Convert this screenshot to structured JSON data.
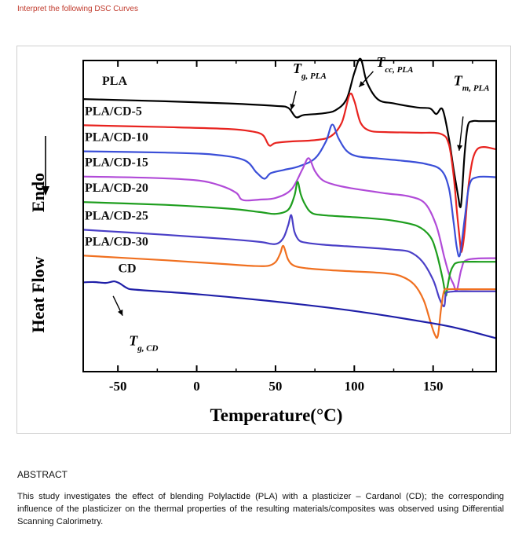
{
  "page": {
    "prompt": "Interpret the following DSC Curves",
    "abstract_heading": "ABSTRACT",
    "abstract_body": "This study investigates the effect of blending Polylactide (PLA) with a plasticizer – Cardanol (CD); the corresponding influence of the plasticizer on the thermal properties of the resulting materials/composites was observed using Differential Scanning Calorimetry."
  },
  "chart_data": {
    "type": "line",
    "title": "",
    "xlabel": "Temperature(°C)",
    "ylabel": "Heat Flow",
    "endo_label": "Endo",
    "xlim": [
      -72,
      190
    ],
    "ylim": [
      0,
      100
    ],
    "xticks": [
      -50,
      0,
      50,
      100,
      150
    ],
    "xtick_labels": [
      "-50",
      "0",
      "50",
      "100",
      "150"
    ],
    "grid": false,
    "series": [
      {
        "name": "PLA",
        "color": "#000000",
        "x": [
          -72,
          -20,
          20,
          50,
          58,
          63,
          68,
          80,
          88,
          95,
          100,
          104,
          108,
          115,
          125,
          140,
          148,
          152,
          156,
          160,
          163,
          166,
          167,
          168,
          170,
          172,
          175,
          180,
          190
        ],
        "y": [
          87.6,
          86.9,
          86.2,
          85.4,
          84.8,
          81.8,
          82.5,
          83.0,
          84.0,
          87.5,
          96.0,
          100.5,
          93.0,
          87.5,
          86.2,
          84.9,
          84.6,
          82.8,
          84.3,
          75.0,
          65.0,
          56.0,
          53.0,
          55.0,
          70.0,
          79.0,
          80.5,
          80.5,
          80.5
        ]
      },
      {
        "name": "PLA/CD-5",
        "color": "#e8231f",
        "x": [
          -72,
          -20,
          20,
          35,
          42,
          46,
          50,
          60,
          75,
          85,
          92,
          97,
          100,
          104,
          110,
          120,
          140,
          155,
          160,
          163,
          165,
          167,
          168,
          170,
          173,
          178,
          190
        ],
        "y": [
          79.2,
          78.6,
          78.0,
          77.2,
          76.0,
          72.7,
          73.5,
          74.0,
          74.4,
          75.6,
          80.0,
          89.0,
          87.0,
          80.0,
          77.4,
          77.0,
          76.8,
          76.4,
          73.0,
          63.0,
          52.0,
          42.0,
          38.5,
          45.0,
          62.0,
          71.5,
          71.5
        ]
      },
      {
        "name": "PLA/CD-10",
        "color": "#3b4fd8",
        "x": [
          -72,
          -20,
          10,
          30,
          38,
          43,
          47,
          55,
          65,
          75,
          82,
          86,
          90,
          95,
          102,
          115,
          130,
          145,
          155,
          160,
          163,
          165,
          167,
          170,
          173,
          178,
          190
        ],
        "y": [
          70.8,
          70.4,
          69.8,
          68.0,
          64.0,
          62.0,
          63.8,
          64.8,
          66.0,
          68.5,
          74.0,
          79.4,
          75.0,
          71.0,
          69.2,
          68.5,
          67.8,
          66.8,
          64.8,
          59.0,
          48.0,
          40.0,
          37.5,
          49.0,
          60.0,
          62.5,
          62.5
        ]
      },
      {
        "name": "PLA/CD-15",
        "color": "#b14bd8",
        "x": [
          -72,
          -30,
          0,
          15,
          25,
          28,
          32,
          40,
          50,
          60,
          67,
          71,
          75,
          80,
          88,
          100,
          120,
          135,
          145,
          152,
          157,
          160,
          163,
          165,
          168,
          172,
          190
        ],
        "y": [
          62.7,
          62.3,
          61.5,
          59.8,
          57.5,
          55.5,
          55.0,
          55.3,
          55.8,
          58.5,
          65.0,
          68.6,
          64.5,
          61.5,
          60.0,
          58.8,
          57.3,
          56.3,
          54.0,
          47.0,
          37.0,
          31.5,
          28.0,
          26.0,
          33.0,
          36.0,
          36.5
        ]
      },
      {
        "name": "PLA/CD-20",
        "color": "#1e9e1e",
        "x": [
          -72,
          -20,
          20,
          40,
          50,
          58,
          62,
          64,
          66,
          69,
          73,
          80,
          95,
          110,
          125,
          140,
          148,
          152,
          156,
          158,
          159,
          161,
          163,
          165,
          170,
          180,
          190
        ],
        "y": [
          54.5,
          53.6,
          52.4,
          51.3,
          50.7,
          52.0,
          56.5,
          61.0,
          57.0,
          53.5,
          51.0,
          50.3,
          49.8,
          49.3,
          48.5,
          46.8,
          43.5,
          38.5,
          30.0,
          24.5,
          27.0,
          32.0,
          34.2,
          35.0,
          35.3,
          35.3,
          35.3
        ]
      },
      {
        "name": "PLA/CD-25",
        "color": "#4a3fc7",
        "x": [
          -72,
          -20,
          20,
          40,
          50,
          55,
          58,
          60,
          62,
          65,
          70,
          80,
          95,
          110,
          125,
          135,
          143,
          150,
          154,
          157,
          158,
          160,
          165,
          175,
          190
        ],
        "y": [
          45.6,
          44.0,
          42.6,
          41.7,
          41.0,
          43.0,
          47.0,
          50.3,
          45.0,
          42.2,
          41.4,
          40.8,
          40.3,
          39.8,
          39.2,
          38.5,
          35.5,
          29.5,
          23.5,
          21.0,
          25.0,
          25.6,
          25.8,
          25.8,
          25.8
        ]
      },
      {
        "name": "PLA/CD-30",
        "color": "#f07020",
        "x": [
          -72,
          -20,
          20,
          35,
          45,
          50,
          53,
          55,
          58,
          62,
          70,
          85,
          100,
          120,
          130,
          138,
          144,
          148,
          151,
          153,
          155,
          157,
          160,
          170,
          190
        ],
        "y": [
          37.3,
          35.8,
          34.5,
          34.0,
          34.0,
          35.2,
          38.0,
          40.4,
          36.0,
          34.0,
          33.2,
          32.6,
          32.2,
          31.6,
          30.6,
          28.0,
          23.0,
          16.5,
          12.0,
          11.5,
          20.0,
          26.0,
          26.5,
          26.5,
          26.5
        ]
      },
      {
        "name": "CD",
        "color": "#1f1fa8",
        "x": [
          -72,
          -65,
          -58,
          -54,
          -52,
          -49,
          -46,
          -43,
          -40,
          -30,
          0,
          50,
          100,
          150,
          170,
          190
        ],
        "y": [
          28.7,
          28.8,
          28.5,
          28.9,
          29.0,
          28.4,
          27.4,
          26.6,
          26.4,
          26.0,
          24.9,
          22.5,
          19.5,
          15.5,
          13.4,
          10.7
        ]
      }
    ],
    "annotations": [
      {
        "text": "T",
        "sub": "g, PLA",
        "x": 61,
        "y": 96
      },
      {
        "text": "T",
        "sub": "cc, PLA",
        "x": 114,
        "y": 98
      },
      {
        "text": "T",
        "sub": "m, PLA",
        "x": 163,
        "y": 92
      },
      {
        "text": "T",
        "sub": "g, CD",
        "x": -43,
        "y": 8.5
      }
    ]
  }
}
